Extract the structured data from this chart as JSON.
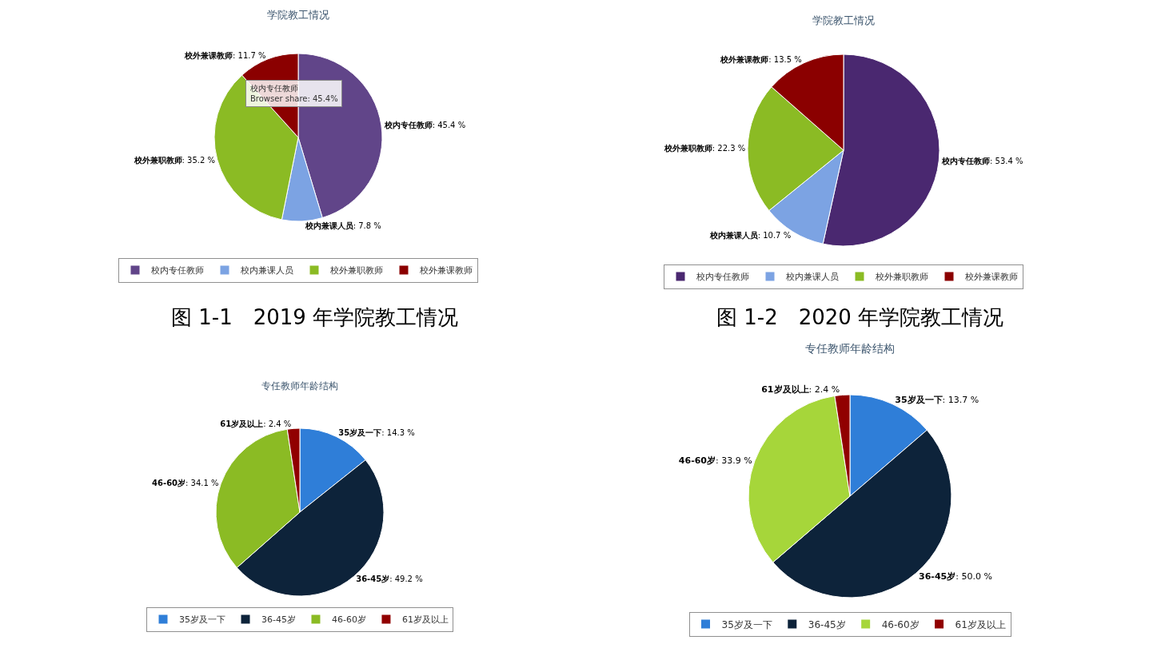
{
  "chart_data": [
    {
      "type": "pie",
      "title": "学院教工情况",
      "categories": [
        "校内专任教师",
        "校内兼课人员",
        "校外兼职教师",
        "校外兼课教师"
      ],
      "values": [
        45.4,
        7.8,
        35.2,
        11.7
      ],
      "value_labels": [
        ": 45.4 %",
        ": 7.8 %",
        ": 35.2 %",
        ": 11.7 %"
      ],
      "colors": [
        "#614589",
        "#7ca3e3",
        "#8bbb24",
        "#8b0000"
      ],
      "legend": "bottom",
      "annotations": [
        "校内专任教师\nBrowser share: 45.4%",
        "图 1-1　2019 年学院教工情况"
      ]
    },
    {
      "type": "pie",
      "title": "学院教工情况",
      "categories": [
        "校内专任教师",
        "校内兼课人员",
        "校外兼职教师",
        "校外兼课教师"
      ],
      "values": [
        53.4,
        10.7,
        22.3,
        13.5
      ],
      "value_labels": [
        ": 53.4 %",
        ": 10.7 %",
        ": 22.3 %",
        ": 13.5 %"
      ],
      "colors": [
        "#4a2870",
        "#7ca3e3",
        "#8bbb24",
        "#8b0000"
      ],
      "legend": "bottom",
      "annotations": [
        "图 1-2　2020 年学院教工情况"
      ]
    },
    {
      "type": "pie",
      "title": "专任教师年龄结构",
      "categories": [
        "35岁及一下",
        "36-45岁",
        "46-60岁",
        "61岁及以上"
      ],
      "values": [
        14.3,
        49.2,
        34.1,
        2.4
      ],
      "value_labels": [
        ": 14.3 %",
        ": 49.2 %",
        ": 34.1 %",
        ": 2.4 %"
      ],
      "colors": [
        "#2f7ed8",
        "#0d233a",
        "#8bbb24",
        "#910000"
      ],
      "legend": "bottom"
    },
    {
      "type": "pie",
      "title": "专任教师年龄结构",
      "categories": [
        "35岁及一下",
        "36-45岁",
        "46-60岁",
        "61岁及以上"
      ],
      "values": [
        13.7,
        50.0,
        33.9,
        2.4
      ],
      "value_labels": [
        ": 13.7 %",
        ": 50.0 %",
        ": 33.9 %",
        ": 2.4 %"
      ],
      "colors": [
        "#2f7ed8",
        "#0d233a",
        "#a6d63a",
        "#910000"
      ],
      "legend": "bottom"
    }
  ]
}
